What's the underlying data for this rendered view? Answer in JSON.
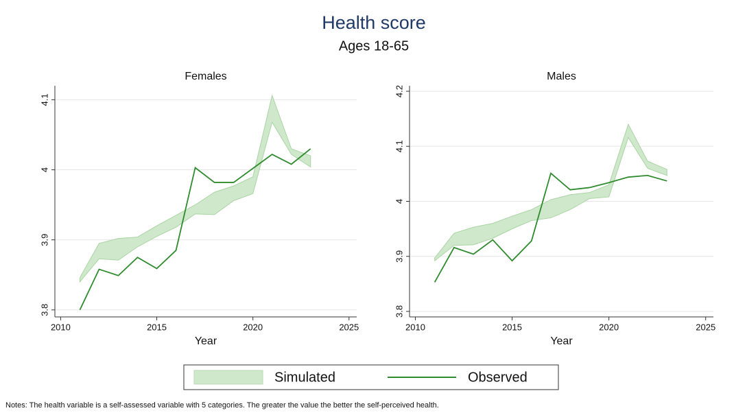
{
  "title": "Health score",
  "subtitle": "Ages 18-65",
  "legend": {
    "series": [
      {
        "name": "Simulated",
        "color": "#cfe8cb"
      },
      {
        "name": "Observed",
        "color": "#2e8b2e"
      }
    ]
  },
  "notes": "Notes: The health variable is a self-assessed variable with 5 categories. The greater the value the better the self-perceived health.",
  "chart_data": [
    {
      "type": "line",
      "title": "Females",
      "xlabel": "Year",
      "x": [
        2011,
        2012,
        2013,
        2014,
        2015,
        2016,
        2017,
        2018,
        2019,
        2020,
        2021,
        2022,
        2023
      ],
      "band": {
        "low": [
          3.84,
          3.873,
          3.871,
          3.89,
          3.905,
          3.918,
          3.937,
          3.936,
          3.956,
          3.966,
          4.068,
          4.022,
          4.004
        ],
        "high": [
          3.846,
          3.895,
          3.902,
          3.904,
          3.92,
          3.935,
          3.95,
          3.968,
          3.977,
          3.99,
          4.106,
          4.03,
          4.02
        ]
      },
      "values": [
        3.8,
        3.858,
        3.849,
        3.875,
        3.859,
        3.885,
        4.003,
        3.982,
        3.982,
        4.002,
        4.022,
        4.008,
        4.03
      ],
      "xlim": [
        2009.7,
        2025.4
      ],
      "xticks": [
        2010,
        2015,
        2020,
        2025
      ],
      "ylim": [
        3.79,
        4.12
      ],
      "yticks": [
        3.8,
        3.9,
        4,
        4.1
      ],
      "grid": true
    },
    {
      "type": "line",
      "title": "Males",
      "xlabel": "Year",
      "x": [
        2011,
        2012,
        2013,
        2014,
        2015,
        2016,
        2017,
        2018,
        2019,
        2020,
        2021,
        2022,
        2023
      ],
      "band": {
        "low": [
          3.892,
          3.92,
          3.921,
          3.933,
          3.95,
          3.965,
          3.97,
          3.985,
          4.005,
          4.008,
          4.116,
          4.06,
          4.047
        ],
        "high": [
          3.897,
          3.942,
          3.953,
          3.96,
          3.973,
          3.985,
          4.003,
          4.012,
          4.016,
          4.03,
          4.14,
          4.073,
          4.058
        ]
      },
      "values": [
        3.853,
        3.916,
        3.904,
        3.93,
        3.892,
        3.928,
        4.051,
        4.021,
        4.025,
        4.034,
        4.044,
        4.047,
        4.037
      ],
      "xlim": [
        2009.7,
        2025.4
      ],
      "xticks": [
        2010,
        2015,
        2020,
        2025
      ],
      "ylim": [
        3.79,
        4.21
      ],
      "yticks": [
        3.8,
        3.9,
        4,
        4.1,
        4.2
      ],
      "grid": true
    }
  ]
}
